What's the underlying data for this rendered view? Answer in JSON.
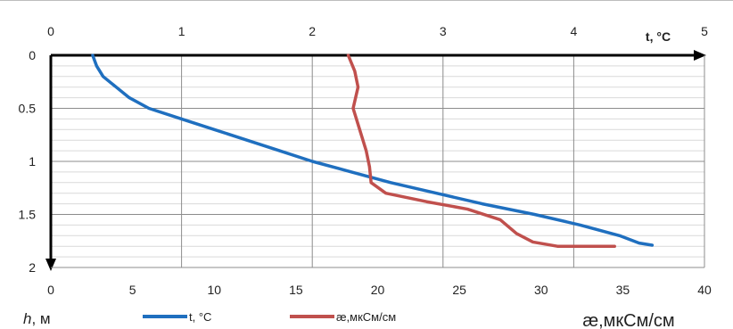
{
  "chart_data": {
    "type": "line",
    "axis_labels": {
      "top_axis_title": "t, °C",
      "left_axis_title_italic": "h",
      "left_axis_title_unit": ", м",
      "bottom_axis_title": "æ,мкСм/см"
    },
    "top_axis": {
      "min": 0,
      "max": 5,
      "ticks": [
        "0",
        "1",
        "2",
        "3",
        "4",
        "5"
      ]
    },
    "bottom_axis": {
      "min": 0,
      "max": 40,
      "ticks": [
        "0",
        "5",
        "10",
        "15",
        "20",
        "25",
        "30",
        "35",
        "40"
      ]
    },
    "left_axis": {
      "min": 0,
      "max": 2,
      "inverted": true,
      "ticks": [
        "0",
        "0.5",
        "1",
        "1.5",
        "2"
      ]
    },
    "grid": true,
    "legend_position": "bottom",
    "series": [
      {
        "name": "t, °C",
        "color": "#1f6fbf",
        "x_axis": "top",
        "points": [
          [
            0.32,
            0.0
          ],
          [
            0.35,
            0.1
          ],
          [
            0.4,
            0.2
          ],
          [
            0.5,
            0.3
          ],
          [
            0.6,
            0.4
          ],
          [
            0.75,
            0.5
          ],
          [
            1.0,
            0.6
          ],
          [
            1.25,
            0.7
          ],
          [
            1.5,
            0.8
          ],
          [
            1.75,
            0.9
          ],
          [
            2.0,
            1.0
          ],
          [
            2.3,
            1.1
          ],
          [
            2.6,
            1.2
          ],
          [
            2.95,
            1.3
          ],
          [
            3.3,
            1.4
          ],
          [
            3.7,
            1.5
          ],
          [
            4.05,
            1.6
          ],
          [
            4.35,
            1.7
          ],
          [
            4.5,
            1.77
          ],
          [
            4.6,
            1.79
          ]
        ]
      },
      {
        "name": "æ,мкСм/см",
        "color": "#c0504d",
        "x_axis": "bottom",
        "points": [
          [
            18.2,
            0.0
          ],
          [
            18.6,
            0.15
          ],
          [
            18.8,
            0.3
          ],
          [
            18.5,
            0.5
          ],
          [
            18.9,
            0.7
          ],
          [
            19.3,
            0.9
          ],
          [
            19.5,
            1.05
          ],
          [
            19.6,
            1.2
          ],
          [
            20.5,
            1.3
          ],
          [
            23.0,
            1.38
          ],
          [
            25.5,
            1.45
          ],
          [
            27.5,
            1.55
          ],
          [
            28.5,
            1.68
          ],
          [
            29.5,
            1.76
          ],
          [
            31.0,
            1.8
          ],
          [
            34.5,
            1.8
          ]
        ]
      }
    ]
  }
}
